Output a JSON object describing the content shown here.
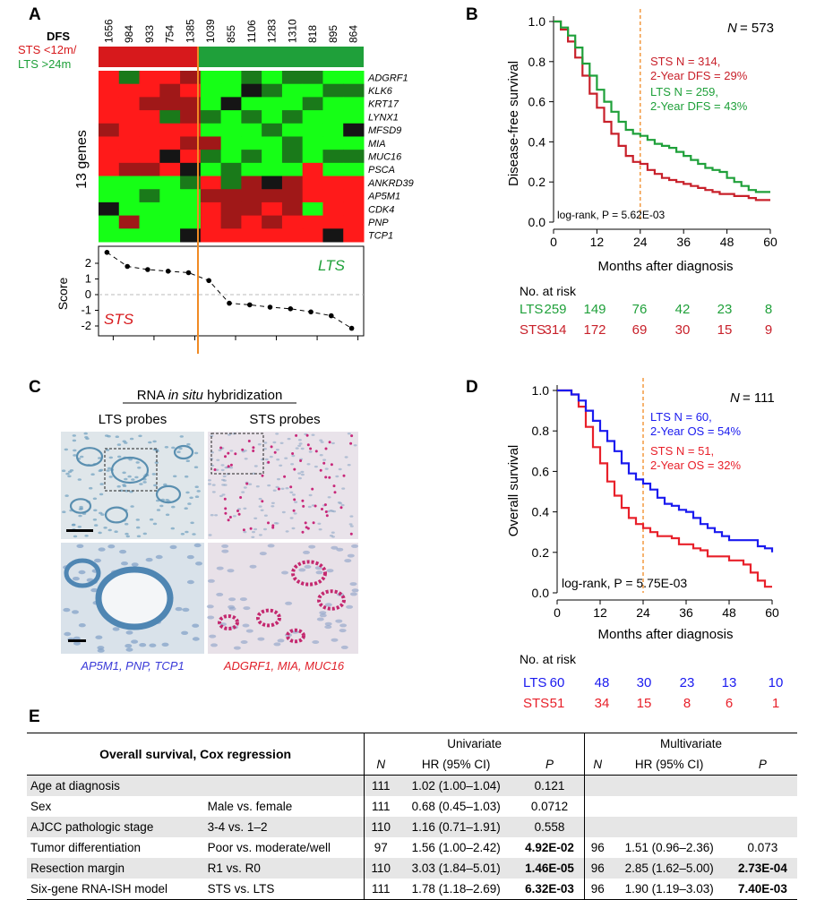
{
  "panels": {
    "a": "A",
    "b": "B",
    "c": "C",
    "d": "D",
    "e": "E"
  },
  "heatmap": {
    "dfs_label": "DFS",
    "sts_group_label": "STS <12m/",
    "lts_group_label": "LTS >24m",
    "gene_count_label": "13 genes",
    "sample_ids": [
      "1656",
      "984",
      "933",
      "754",
      "1385",
      "1039",
      "855",
      "1106",
      "1283",
      "1310",
      "818",
      "895",
      "864"
    ],
    "genes": [
      "ADGRF1",
      "KLK6",
      "KRT17",
      "LYNX1",
      "MFSD9",
      "MIA",
      "MUC16",
      "PSCA",
      "ANKRD39",
      "AP5M1",
      "CDK4",
      "PNP",
      "TCP1"
    ],
    "colors": {
      "sts": "#d7191c",
      "lts": "#1fa03a"
    },
    "matrix": [
      [
        2,
        -1,
        2,
        2,
        1,
        -2,
        -2,
        -1,
        -2,
        -1,
        -1,
        -2,
        -2
      ],
      [
        2,
        2,
        2,
        1,
        2,
        -2,
        -2,
        0,
        -1,
        -2,
        -2,
        -1,
        -1
      ],
      [
        2,
        2,
        1,
        1,
        1,
        -2,
        0,
        -2,
        -2,
        -2,
        -1,
        -2,
        -2
      ],
      [
        2,
        2,
        2,
        -1,
        1,
        -1,
        -2,
        -1,
        -2,
        -1,
        -2,
        -2,
        -2
      ],
      [
        1,
        2,
        2,
        2,
        2,
        -2,
        -2,
        -2,
        -1,
        -2,
        -2,
        -2,
        0
      ],
      [
        2,
        2,
        2,
        2,
        1,
        1,
        -2,
        -2,
        -2,
        -1,
        -2,
        -2,
        -2
      ],
      [
        2,
        2,
        2,
        0,
        2,
        -1,
        -2,
        -1,
        -2,
        -1,
        -2,
        -1,
        -1
      ],
      [
        2,
        1,
        1,
        2,
        0,
        -2,
        -1,
        -2,
        -2,
        -2,
        2,
        -2,
        -2
      ],
      [
        -2,
        -2,
        -2,
        -2,
        -1,
        2,
        -1,
        1,
        0,
        1,
        2,
        2,
        2
      ],
      [
        -2,
        -2,
        -1,
        -2,
        -2,
        1,
        1,
        1,
        1,
        1,
        2,
        2,
        2
      ],
      [
        0,
        -2,
        -2,
        -2,
        -2,
        2,
        1,
        1,
        2,
        1,
        -2,
        2,
        2
      ],
      [
        -2,
        1,
        -2,
        -2,
        -2,
        2,
        1,
        2,
        1,
        2,
        2,
        2,
        2
      ],
      [
        -2,
        -2,
        -2,
        -2,
        0,
        2,
        2,
        2,
        2,
        2,
        2,
        0,
        2
      ]
    ],
    "score_axis_label": "Score",
    "score_ticks": [
      "2",
      "1",
      "0",
      "-1",
      "-2"
    ],
    "score_values": [
      2.7,
      1.8,
      1.6,
      1.5,
      1.4,
      0.9,
      -0.55,
      -0.65,
      -0.8,
      -0.9,
      -1.1,
      -1.35,
      -2.15
    ],
    "lts_text": "LTS",
    "sts_text": "STS"
  },
  "km_dfs": {
    "n_label": "N",
    "n_value": "= 573",
    "ylabel": "Disease-free survival",
    "xlabel": "Months after diagnosis",
    "x_ticks": [
      "0",
      "12",
      "24",
      "36",
      "48",
      "60"
    ],
    "y_ticks": [
      "0.0",
      "0.2",
      "0.4",
      "0.6",
      "0.8",
      "1.0"
    ],
    "sts_line1": "STS N = 314,",
    "sts_line2": "2-Year DFS = 29%",
    "lts_line1": "LTS N = 259,",
    "lts_line2": "2-Year DFS = 43%",
    "logrank": "log-rank, P = 5.62E-03",
    "risk_title": "No. at risk",
    "risk_rows": [
      {
        "label": "LTS",
        "values": [
          "259",
          "149",
          "76",
          "42",
          "23",
          "8"
        ],
        "color": "#1fa03a"
      },
      {
        "label": "STS",
        "values": [
          "314",
          "172",
          "69",
          "30",
          "15",
          "9"
        ],
        "color": "#c8202a"
      }
    ]
  },
  "ish": {
    "title_pre": "RNA ",
    "title_em": "in situ",
    "title_post": " hybridization",
    "lts_probes": "LTS probes",
    "sts_probes": "STS probes",
    "lts_genes": "AP5M1, PNP, TCP1",
    "sts_genes": "ADGRF1, MIA, MUC16"
  },
  "km_os": {
    "n_label": "N",
    "n_value": "= 111",
    "ylabel": "Overall survival",
    "xlabel": "Months after diagnosis",
    "x_ticks": [
      "0",
      "12",
      "24",
      "36",
      "48",
      "60"
    ],
    "y_ticks": [
      "0.0",
      "0.2",
      "0.4",
      "0.6",
      "0.8",
      "1.0"
    ],
    "lts_line1": "LTS N = 60,",
    "lts_line2": "2-Year OS = 54%",
    "sts_line1": "STS N = 51,",
    "sts_line2": "2-Year OS = 32%",
    "logrank": "log-rank, P = 5.75E-03",
    "risk_title": "No. at risk",
    "risk_rows": [
      {
        "label": "LTS",
        "values": [
          "60",
          "48",
          "30",
          "23",
          "13",
          "10"
        ],
        "color": "#1a1aef"
      },
      {
        "label": "STS",
        "values": [
          "51",
          "34",
          "15",
          "8",
          "6",
          "1"
        ],
        "color": "#e8202a"
      }
    ]
  },
  "chart_data": [
    {
      "type": "line",
      "title": "",
      "xlabel": "Months after diagnosis",
      "ylabel": "Disease-free survival",
      "xlim": [
        0,
        60
      ],
      "ylim": [
        0,
        1
      ],
      "reference_line_x": 24,
      "series": [
        {
          "name": "LTS",
          "color": "#1fa03a",
          "x": [
            0,
            2,
            4,
            6,
            8,
            10,
            12,
            14,
            16,
            18,
            20,
            22,
            24,
            26,
            28,
            30,
            32,
            34,
            36,
            38,
            40,
            42,
            44,
            46,
            48,
            50,
            52,
            54,
            56,
            58,
            60
          ],
          "y": [
            1.0,
            0.97,
            0.93,
            0.87,
            0.79,
            0.73,
            0.66,
            0.6,
            0.55,
            0.5,
            0.46,
            0.44,
            0.43,
            0.41,
            0.39,
            0.38,
            0.37,
            0.35,
            0.33,
            0.31,
            0.29,
            0.27,
            0.26,
            0.25,
            0.22,
            0.2,
            0.18,
            0.16,
            0.15,
            0.15,
            0.15
          ]
        },
        {
          "name": "STS",
          "color": "#c8202a",
          "x": [
            0,
            2,
            4,
            6,
            8,
            10,
            12,
            14,
            16,
            18,
            20,
            22,
            24,
            26,
            28,
            30,
            32,
            34,
            36,
            38,
            40,
            42,
            44,
            46,
            48,
            50,
            52,
            54,
            56,
            58,
            60
          ],
          "y": [
            1.0,
            0.96,
            0.9,
            0.82,
            0.73,
            0.64,
            0.57,
            0.5,
            0.44,
            0.38,
            0.33,
            0.3,
            0.29,
            0.26,
            0.24,
            0.22,
            0.21,
            0.2,
            0.19,
            0.18,
            0.17,
            0.16,
            0.15,
            0.14,
            0.14,
            0.13,
            0.13,
            0.12,
            0.11,
            0.11,
            0.11
          ]
        }
      ],
      "risk_table": {
        "times": [
          0,
          12,
          24,
          36,
          48,
          60
        ],
        "LTS": [
          259,
          149,
          76,
          42,
          23,
          8
        ],
        "STS": [
          314,
          172,
          69,
          30,
          15,
          9
        ]
      }
    },
    {
      "type": "line",
      "title": "",
      "xlabel": "Months after diagnosis",
      "ylabel": "Overall survival",
      "xlim": [
        0,
        60
      ],
      "ylim": [
        0,
        1
      ],
      "reference_line_x": 24,
      "series": [
        {
          "name": "LTS",
          "color": "#1a1aef",
          "x": [
            0,
            2,
            4,
            6,
            8,
            10,
            12,
            14,
            16,
            18,
            20,
            22,
            24,
            26,
            28,
            30,
            32,
            34,
            36,
            38,
            40,
            42,
            44,
            46,
            48,
            50,
            52,
            54,
            56,
            58,
            60
          ],
          "y": [
            1.0,
            1.0,
            0.98,
            0.95,
            0.9,
            0.85,
            0.8,
            0.75,
            0.7,
            0.64,
            0.59,
            0.56,
            0.54,
            0.51,
            0.47,
            0.44,
            0.43,
            0.41,
            0.4,
            0.37,
            0.34,
            0.32,
            0.3,
            0.28,
            0.26,
            0.26,
            0.26,
            0.26,
            0.23,
            0.22,
            0.2
          ]
        },
        {
          "name": "STS",
          "color": "#e8202a",
          "x": [
            0,
            2,
            4,
            6,
            8,
            10,
            12,
            14,
            16,
            18,
            20,
            22,
            24,
            26,
            28,
            30,
            32,
            34,
            36,
            38,
            40,
            42,
            44,
            46,
            48,
            50,
            52,
            54,
            56,
            58,
            60
          ],
          "y": [
            1.0,
            1.0,
            0.98,
            0.92,
            0.82,
            0.72,
            0.64,
            0.55,
            0.48,
            0.42,
            0.37,
            0.34,
            0.32,
            0.3,
            0.28,
            0.28,
            0.27,
            0.24,
            0.24,
            0.22,
            0.21,
            0.18,
            0.18,
            0.18,
            0.16,
            0.16,
            0.14,
            0.1,
            0.06,
            0.03,
            0.03
          ]
        }
      ],
      "risk_table": {
        "times": [
          0,
          12,
          24,
          36,
          48,
          60
        ],
        "LTS": [
          60,
          48,
          30,
          23,
          13,
          10
        ],
        "STS": [
          51,
          34,
          15,
          8,
          6,
          1
        ]
      }
    },
    {
      "type": "table",
      "title": "Overall survival, Cox regression",
      "header": {
        "univariate": "Univariate",
        "multivariate": "Multivariate",
        "n": "N",
        "hr": "HR (95% CI)",
        "p": "P"
      },
      "rows": [
        {
          "variable": "Age at diagnosis",
          "comparison": "",
          "uni_n": "111",
          "uni_hr": "1.02 (1.00–1.04)",
          "uni_p": "0.121",
          "uni_bold": false,
          "multi_n": "",
          "multi_hr": "",
          "multi_p": "",
          "multi_bold": false
        },
        {
          "variable": "Sex",
          "comparison": "Male vs. female",
          "uni_n": "111",
          "uni_hr": "0.68 (0.45–1.03)",
          "uni_p": "0.0712",
          "uni_bold": false,
          "multi_n": "",
          "multi_hr": "",
          "multi_p": "",
          "multi_bold": false
        },
        {
          "variable": "AJCC pathologic stage",
          "comparison": "3-4 vs. 1–2",
          "uni_n": "110",
          "uni_hr": "1.16 (0.71–1.91)",
          "uni_p": "0.558",
          "uni_bold": false,
          "multi_n": "",
          "multi_hr": "",
          "multi_p": "",
          "multi_bold": false
        },
        {
          "variable": "Tumor differentiation",
          "comparison": "Poor vs. moderate/well",
          "uni_n": "97",
          "uni_hr": "1.56 (1.00–2.42)",
          "uni_p": "4.92E-02",
          "uni_bold": true,
          "multi_n": "96",
          "multi_hr": "1.51 (0.96–2.36)",
          "multi_p": "0.073",
          "multi_bold": false
        },
        {
          "variable": "Resection margin",
          "comparison": "R1 vs. R0",
          "uni_n": "110",
          "uni_hr": "3.03 (1.84–5.01)",
          "uni_p": "1.46E-05",
          "uni_bold": true,
          "multi_n": "96",
          "multi_hr": "2.85 (1.62–5.00)",
          "multi_p": "2.73E-04",
          "multi_bold": true
        },
        {
          "variable": "Six-gene RNA-ISH model",
          "comparison": "STS vs. LTS",
          "uni_n": "111",
          "uni_hr": "1.78 (1.18–2.69)",
          "uni_p": "6.32E-03",
          "uni_bold": true,
          "multi_n": "96",
          "multi_hr": "1.90 (1.19–3.03)",
          "multi_p": "7.40E-03",
          "multi_bold": true
        }
      ]
    }
  ]
}
